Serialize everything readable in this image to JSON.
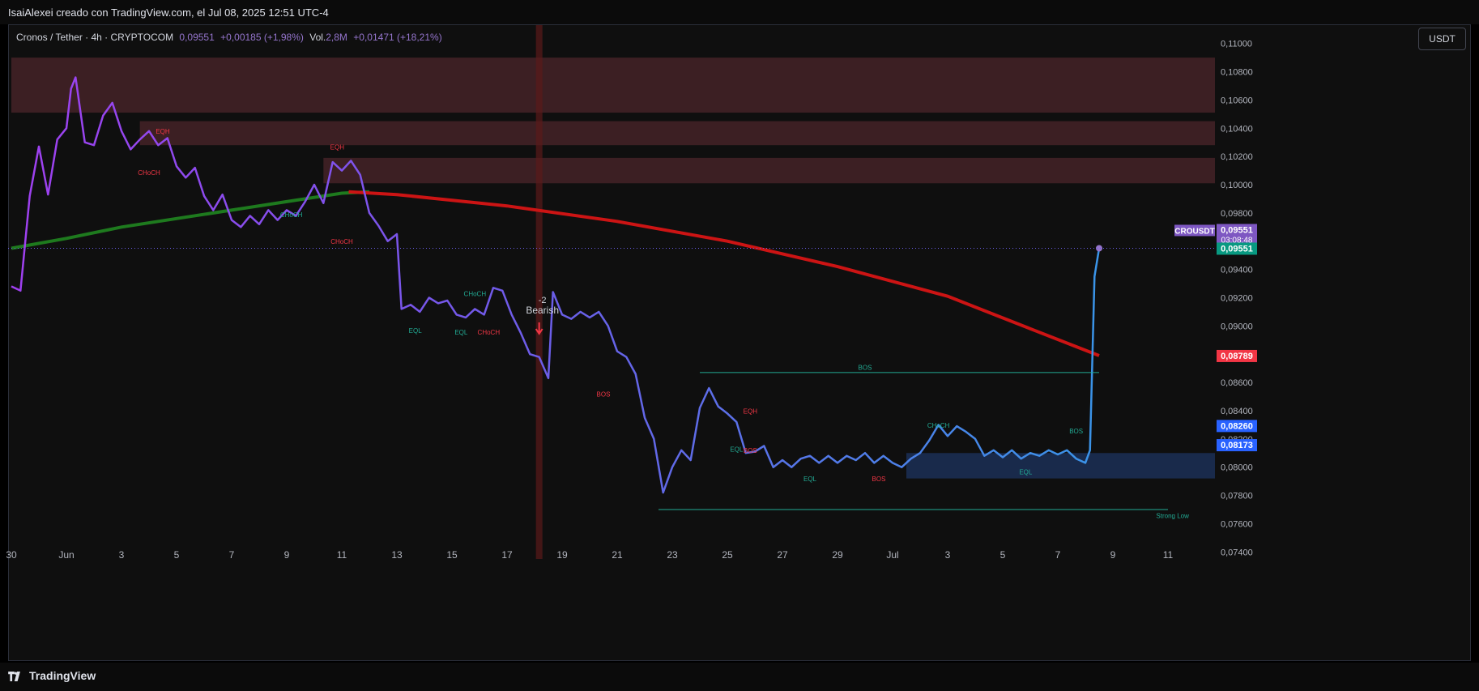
{
  "header": {
    "credit": "IsaiAlexei creado con TradingView.com, el Jul 08, 2025 12:51 UTC-4"
  },
  "legend": {
    "symbol": "Cronos / Tether · 4h · CRYPTOCOM",
    "price": "0,09551",
    "change": "+0,00185 (+1,98%)",
    "vol_label": "Vol.",
    "vol_value": "2,8M",
    "vol_change": "+0,01471 (+18,21%)"
  },
  "currency_button": "USDT",
  "footer": {
    "brand": "TradingView"
  },
  "colors": {
    "price_line_start": "#a040f0",
    "price_line_end": "#3a94e8",
    "ema_slow": "#cc1414",
    "ema_mid": "#1e7a1e",
    "accent_red": "#f23645",
    "accent_green": "#22ab94",
    "zone": "#5a2a30",
    "demand_zone": "#1a2c4f"
  },
  "chart_data": {
    "type": "line",
    "title": "",
    "ylim": [
      0.0735,
      0.1113
    ],
    "y_ticks": [
      0.11,
      0.108,
      0.106,
      0.104,
      0.102,
      0.1,
      0.098,
      0.096,
      0.094,
      0.092,
      0.09,
      0.088,
      0.086,
      0.084,
      0.082,
      0.08,
      0.078,
      0.076,
      0.074
    ],
    "y_tick_labels": [
      "0,11000",
      "0,10800",
      "0,10600",
      "0,10400",
      "0,10200",
      "0,10000",
      "0,09800",
      "0,09600",
      "0,09400",
      "0,09200",
      "0,09000",
      "0,08800",
      "0,08600",
      "0,08400",
      "0,08200",
      "0,08000",
      "0,07800",
      "0,07600",
      "0,07400"
    ],
    "x_range": [
      "2025-05-30",
      "2025-07-12"
    ],
    "x_ticks": [
      {
        "date": "2025-05-30",
        "label": "30"
      },
      {
        "date": "2025-06-01",
        "label": "Jun"
      },
      {
        "date": "2025-06-03",
        "label": "3"
      },
      {
        "date": "2025-06-05",
        "label": "5"
      },
      {
        "date": "2025-06-07",
        "label": "7"
      },
      {
        "date": "2025-06-09",
        "label": "9"
      },
      {
        "date": "2025-06-11",
        "label": "11"
      },
      {
        "date": "2025-06-13",
        "label": "13"
      },
      {
        "date": "2025-06-15",
        "label": "15"
      },
      {
        "date": "2025-06-17",
        "label": "17"
      },
      {
        "date": "2025-06-19",
        "label": "19"
      },
      {
        "date": "2025-06-21",
        "label": "21"
      },
      {
        "date": "2025-06-23",
        "label": "23"
      },
      {
        "date": "2025-06-25",
        "label": "25"
      },
      {
        "date": "2025-06-27",
        "label": "27"
      },
      {
        "date": "2025-06-29",
        "label": "29"
      },
      {
        "date": "2025-07-01",
        "label": "Jul"
      },
      {
        "date": "2025-07-03",
        "label": "3"
      },
      {
        "date": "2025-07-05",
        "label": "5"
      },
      {
        "date": "2025-07-07",
        "label": "7"
      },
      {
        "date": "2025-07-09",
        "label": "9"
      },
      {
        "date": "2025-07-11",
        "label": "11"
      }
    ],
    "series": [
      {
        "name": "CROUSDT",
        "values": [
          [
            "2025-05-30T00:00",
            0.0928
          ],
          [
            "2025-05-30T08:00",
            0.0925
          ],
          [
            "2025-05-30T16:00",
            0.0992
          ],
          [
            "2025-05-31T00:00",
            0.1027
          ],
          [
            "2025-05-31T08:00",
            0.0993
          ],
          [
            "2025-05-31T16:00",
            0.1032
          ],
          [
            "2025-06-01T00:00",
            0.104
          ],
          [
            "2025-06-01T04:00",
            0.1068
          ],
          [
            "2025-06-01T08:00",
            0.1076
          ],
          [
            "2025-06-01T16:00",
            0.103
          ],
          [
            "2025-06-02T00:00",
            0.1028
          ],
          [
            "2025-06-02T08:00",
            0.1049
          ],
          [
            "2025-06-02T16:00",
            0.1058
          ],
          [
            "2025-06-03T00:00",
            0.1038
          ],
          [
            "2025-06-03T08:00",
            0.1025
          ],
          [
            "2025-06-03T16:00",
            0.1032
          ],
          [
            "2025-06-04T00:00",
            0.1038
          ],
          [
            "2025-06-04T08:00",
            0.1028
          ],
          [
            "2025-06-04T16:00",
            0.1033
          ],
          [
            "2025-06-05T00:00",
            0.1013
          ],
          [
            "2025-06-05T08:00",
            0.1005
          ],
          [
            "2025-06-05T16:00",
            0.1012
          ],
          [
            "2025-06-06T00:00",
            0.0992
          ],
          [
            "2025-06-06T08:00",
            0.0982
          ],
          [
            "2025-06-06T16:00",
            0.0993
          ],
          [
            "2025-06-07T00:00",
            0.0975
          ],
          [
            "2025-06-07T08:00",
            0.097
          ],
          [
            "2025-06-07T16:00",
            0.0978
          ],
          [
            "2025-06-08T00:00",
            0.0972
          ],
          [
            "2025-06-08T08:00",
            0.0982
          ],
          [
            "2025-06-08T16:00",
            0.0975
          ],
          [
            "2025-06-09T00:00",
            0.0982
          ],
          [
            "2025-06-09T08:00",
            0.0978
          ],
          [
            "2025-06-09T16:00",
            0.0988
          ],
          [
            "2025-06-10T00:00",
            0.1
          ],
          [
            "2025-06-10T08:00",
            0.0987
          ],
          [
            "2025-06-10T16:00",
            0.1016
          ],
          [
            "2025-06-11T00:00",
            0.101
          ],
          [
            "2025-06-11T08:00",
            0.1017
          ],
          [
            "2025-06-11T16:00",
            0.1007
          ],
          [
            "2025-06-12T00:00",
            0.098
          ],
          [
            "2025-06-12T08:00",
            0.0971
          ],
          [
            "2025-06-12T16:00",
            0.096
          ],
          [
            "2025-06-13T00:00",
            0.0965
          ],
          [
            "2025-06-13T04:00",
            0.0912
          ],
          [
            "2025-06-13T12:00",
            0.0915
          ],
          [
            "2025-06-13T20:00",
            0.091
          ],
          [
            "2025-06-14T04:00",
            0.092
          ],
          [
            "2025-06-14T12:00",
            0.0916
          ],
          [
            "2025-06-14T20:00",
            0.0918
          ],
          [
            "2025-06-15T04:00",
            0.0908
          ],
          [
            "2025-06-15T12:00",
            0.0906
          ],
          [
            "2025-06-15T20:00",
            0.0912
          ],
          [
            "2025-06-16T04:00",
            0.0908
          ],
          [
            "2025-06-16T12:00",
            0.0927
          ],
          [
            "2025-06-16T20:00",
            0.0925
          ],
          [
            "2025-06-17T04:00",
            0.0908
          ],
          [
            "2025-06-17T12:00",
            0.0895
          ],
          [
            "2025-06-17T20:00",
            0.088
          ],
          [
            "2025-06-18T04:00",
            0.0878
          ],
          [
            "2025-06-18T12:00",
            0.0863
          ],
          [
            "2025-06-18T16:00",
            0.0924
          ],
          [
            "2025-06-19T00:00",
            0.0908
          ],
          [
            "2025-06-19T08:00",
            0.0905
          ],
          [
            "2025-06-19T16:00",
            0.091
          ],
          [
            "2025-06-20T00:00",
            0.0906
          ],
          [
            "2025-06-20T08:00",
            0.091
          ],
          [
            "2025-06-20T16:00",
            0.09
          ],
          [
            "2025-06-21T00:00",
            0.0882
          ],
          [
            "2025-06-21T08:00",
            0.0878
          ],
          [
            "2025-06-21T16:00",
            0.0866
          ],
          [
            "2025-06-22T00:00",
            0.0835
          ],
          [
            "2025-06-22T08:00",
            0.082
          ],
          [
            "2025-06-22T16:00",
            0.0782
          ],
          [
            "2025-06-23T00:00",
            0.08
          ],
          [
            "2025-06-23T08:00",
            0.0812
          ],
          [
            "2025-06-23T16:00",
            0.0805
          ],
          [
            "2025-06-24T00:00",
            0.0842
          ],
          [
            "2025-06-24T08:00",
            0.0856
          ],
          [
            "2025-06-24T16:00",
            0.0843
          ],
          [
            "2025-06-25T00:00",
            0.0838
          ],
          [
            "2025-06-25T08:00",
            0.0832
          ],
          [
            "2025-06-25T16:00",
            0.081
          ],
          [
            "2025-06-26T00:00",
            0.0811
          ],
          [
            "2025-06-26T08:00",
            0.0815
          ],
          [
            "2025-06-26T16:00",
            0.08
          ],
          [
            "2025-06-27T00:00",
            0.0805
          ],
          [
            "2025-06-27T08:00",
            0.08
          ],
          [
            "2025-06-27T16:00",
            0.0806
          ],
          [
            "2025-06-28T00:00",
            0.0808
          ],
          [
            "2025-06-28T08:00",
            0.0803
          ],
          [
            "2025-06-28T16:00",
            0.0808
          ],
          [
            "2025-06-29T00:00",
            0.0803
          ],
          [
            "2025-06-29T08:00",
            0.0808
          ],
          [
            "2025-06-29T16:00",
            0.0805
          ],
          [
            "2025-06-30T00:00",
            0.081
          ],
          [
            "2025-06-30T08:00",
            0.0803
          ],
          [
            "2025-06-30T16:00",
            0.0808
          ],
          [
            "2025-07-01T00:00",
            0.0803
          ],
          [
            "2025-07-01T08:00",
            0.08
          ],
          [
            "2025-07-01T16:00",
            0.0806
          ],
          [
            "2025-07-02T00:00",
            0.081
          ],
          [
            "2025-07-02T08:00",
            0.0819
          ],
          [
            "2025-07-02T16:00",
            0.083
          ],
          [
            "2025-07-03T00:00",
            0.0822
          ],
          [
            "2025-07-03T08:00",
            0.0829
          ],
          [
            "2025-07-03T16:00",
            0.0825
          ],
          [
            "2025-07-04T00:00",
            0.082
          ],
          [
            "2025-07-04T08:00",
            0.0808
          ],
          [
            "2025-07-04T16:00",
            0.0812
          ],
          [
            "2025-07-05T00:00",
            0.0807
          ],
          [
            "2025-07-05T08:00",
            0.0812
          ],
          [
            "2025-07-05T16:00",
            0.0806
          ],
          [
            "2025-07-06T00:00",
            0.081
          ],
          [
            "2025-07-06T08:00",
            0.0808
          ],
          [
            "2025-07-06T16:00",
            0.0812
          ],
          [
            "2025-07-07T00:00",
            0.0809
          ],
          [
            "2025-07-07T08:00",
            0.0812
          ],
          [
            "2025-07-07T16:00",
            0.0806
          ],
          [
            "2025-07-08T00:00",
            0.0803
          ],
          [
            "2025-07-08T04:00",
            0.0812
          ],
          [
            "2025-07-08T08:00",
            0.0935
          ],
          [
            "2025-07-08T12:00",
            0.0955
          ]
        ]
      },
      {
        "name": "",
        "style": "ema_slow",
        "values": [
          [
            "2025-06-11T06:00",
            0.0995
          ],
          [
            "2025-06-13T00:00",
            0.0993
          ],
          [
            "2025-06-17T00:00",
            0.0985
          ],
          [
            "2025-06-21T00:00",
            0.0974
          ],
          [
            "2025-06-25T00:00",
            0.096
          ],
          [
            "2025-06-29T00:00",
            0.0942
          ],
          [
            "2025-07-03T00:00",
            0.0921
          ],
          [
            "2025-07-06T00:00",
            0.0898
          ],
          [
            "2025-07-08T12:00",
            0.0879
          ]
        ]
      },
      {
        "name": "",
        "style": "ema_mid",
        "values": [
          [
            "2025-05-30T00:00",
            0.0955
          ],
          [
            "2025-06-01T00:00",
            0.0962
          ],
          [
            "2025-06-03T00:00",
            0.097
          ],
          [
            "2025-06-05T00:00",
            0.0976
          ],
          [
            "2025-06-07T00:00",
            0.0982
          ],
          [
            "2025-06-09T00:00",
            0.0988
          ],
          [
            "2025-06-11T00:00",
            0.0994
          ],
          [
            "2025-06-12T00:00",
            0.0995
          ]
        ]
      }
    ],
    "zones": [
      {
        "from": "2025-05-30",
        "to": "2025-07-12",
        "top": 0.109,
        "bottom": 0.1051,
        "kind": "supply"
      },
      {
        "from": "2025-06-03T16:00",
        "to": "2025-07-12",
        "top": 0.1045,
        "bottom": 0.1028,
        "kind": "supply"
      },
      {
        "from": "2025-06-10T08:00",
        "to": "2025-07-12",
        "top": 0.1019,
        "bottom": 0.1001,
        "kind": "supply"
      },
      {
        "from": "2025-07-01T12:00",
        "to": "2025-07-12",
        "top": 0.081,
        "bottom": 0.0792,
        "kind": "demand"
      }
    ],
    "structure_labels": [
      {
        "text": "EQH",
        "date": "2025-06-04T12:00",
        "price": 0.1036,
        "color": "red"
      },
      {
        "text": "CHoCH",
        "date": "2025-06-04T00:00",
        "price": 0.1007,
        "color": "red"
      },
      {
        "text": "EQH",
        "date": "2025-06-10T20:00",
        "price": 0.1025,
        "color": "red"
      },
      {
        "text": "CHoCH",
        "date": "2025-06-09T04:00",
        "price": 0.0977,
        "color": "green"
      },
      {
        "text": "CHoCH",
        "date": "2025-06-11T00:00",
        "price": 0.0958,
        "color": "red"
      },
      {
        "text": "CHoCH",
        "date": "2025-06-15T20:00",
        "price": 0.0921,
        "color": "green"
      },
      {
        "text": "EQL",
        "date": "2025-06-13T16:00",
        "price": 0.0895,
        "color": "green"
      },
      {
        "text": "EQL",
        "date": "2025-06-15T08:00",
        "price": 0.0894,
        "color": "green"
      },
      {
        "text": "CHoCH",
        "date": "2025-06-16T08:00",
        "price": 0.0894,
        "color": "red"
      },
      {
        "text": "BOS",
        "date": "2025-06-20T12:00",
        "price": 0.085,
        "color": "red"
      },
      {
        "text": "BOS",
        "date": "2025-06-30T00:00",
        "price": 0.0869,
        "color": "green"
      },
      {
        "text": "EQH",
        "date": "2025-06-25T20:00",
        "price": 0.0838,
        "color": "red"
      },
      {
        "text": "EQL",
        "date": "2025-06-25T08:00",
        "price": 0.0811,
        "color": "green"
      },
      {
        "text": "BOS",
        "date": "2025-06-25T20:00",
        "price": 0.081,
        "color": "red"
      },
      {
        "text": "EQL",
        "date": "2025-06-28T00:00",
        "price": 0.079,
        "color": "green"
      },
      {
        "text": "BOS",
        "date": "2025-06-30T12:00",
        "price": 0.079,
        "color": "red"
      },
      {
        "text": "CHoCH",
        "date": "2025-07-02T16:00",
        "price": 0.0828,
        "color": "green"
      },
      {
        "text": "EQL",
        "date": "2025-07-05T20:00",
        "price": 0.0795,
        "color": "green"
      },
      {
        "text": "BOS",
        "date": "2025-07-07T16:00",
        "price": 0.0824,
        "color": "green"
      },
      {
        "text": "Strong Low",
        "date": "2025-07-11T04:00",
        "price": 0.0764,
        "color": "green"
      }
    ],
    "signal": {
      "date": "2025-06-18T04:00",
      "count": "-2",
      "label": "Bearish"
    },
    "price_tags": [
      {
        "value": "0,09551",
        "sub": "03:08:48",
        "title": "CROUSDT",
        "price": 0.0955,
        "color": "#7e57c2"
      },
      {
        "value": "0,09551",
        "price": 0.0955,
        "color": "#089981"
      },
      {
        "value": "0,08789",
        "price": 0.0879,
        "color": "#f23645"
      },
      {
        "value": "0,08260",
        "price": 0.0826,
        "color": "#2962ff"
      },
      {
        "value": "0,08173",
        "price": 0.0817,
        "color": "#2962ff"
      }
    ]
  }
}
